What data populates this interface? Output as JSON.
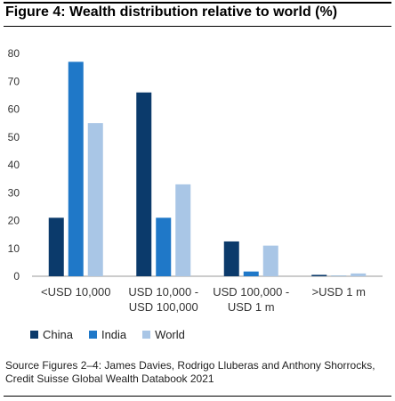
{
  "title": "Figure 4: Wealth distribution relative to world (%)",
  "source": "Source Figures 2–4: James Davies, Rodrigo Lluberas and Anthony Shorrocks, Credit Suisse Global Wealth Databook 2021",
  "chart_data": {
    "type": "bar",
    "categories": [
      [
        "<USD 10,000"
      ],
      [
        "USD 10,000 -",
        "USD 100,000"
      ],
      [
        "USD 100,000 -",
        "USD 1 m"
      ],
      [
        ">USD 1 m"
      ]
    ],
    "series": [
      {
        "name": "China",
        "color": "#0b3a6b",
        "values": [
          21,
          66,
          12.5,
          0.5
        ]
      },
      {
        "name": "India",
        "color": "#1f78c8",
        "values": [
          77,
          21,
          1.7,
          0.1
        ]
      },
      {
        "name": "World",
        "color": "#a9c6e6",
        "values": [
          55,
          33,
          11,
          1
        ]
      }
    ],
    "ylim": [
      0,
      80
    ],
    "yticks": [
      0,
      10,
      20,
      30,
      40,
      50,
      60,
      70,
      80
    ],
    "grid": false,
    "legend": "bottom-left"
  }
}
